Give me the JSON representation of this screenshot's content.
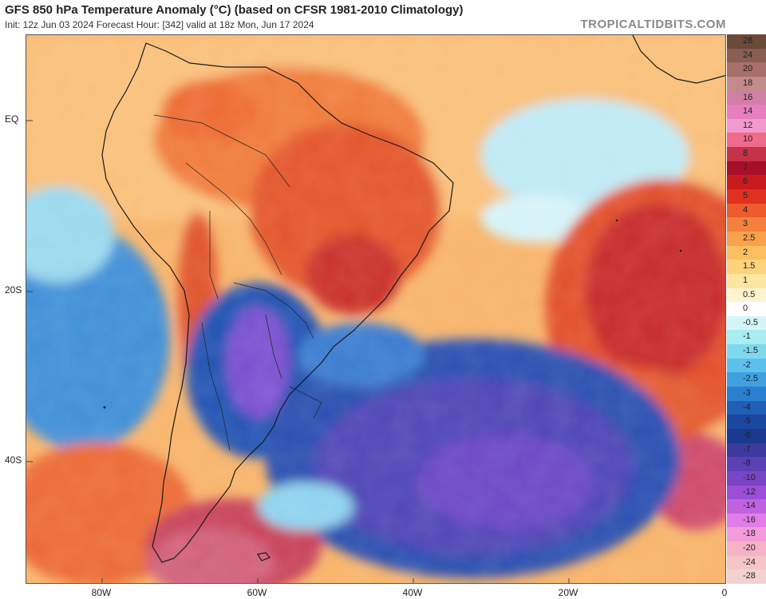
{
  "header": {
    "title": "GFS 850 hPa Temperature Anomaly (°C) (based on CFSR 1981-2010 Climatology)",
    "subtitle": "Init: 12z Jun 03 2024   Forecast Hour: [342]   valid at 18z Mon, Jun 17 2024",
    "brand": "TROPICALTIDBITS.COM"
  },
  "axes": {
    "lat_labels": [
      "EQ",
      "20S",
      "40S"
    ],
    "lon_labels": [
      "80W",
      "60W",
      "40W",
      "20W",
      "0"
    ]
  },
  "colorbar": {
    "levels": [
      "28",
      "24",
      "20",
      "18",
      "16",
      "14",
      "12",
      "10",
      "8",
      "7",
      "6",
      "5",
      "4",
      "3",
      "2.5",
      "2",
      "1.5",
      "1",
      "0.5",
      "0",
      "-0.5",
      "-1",
      "-1.5",
      "-2",
      "-2.5",
      "-3",
      "-4",
      "-5",
      "-6",
      "-7",
      "-8",
      "-10",
      "-12",
      "-14",
      "-16",
      "-18",
      "-20",
      "-24",
      "-28"
    ],
    "colors": [
      "#6b4a3a",
      "#8a5e52",
      "#a8706a",
      "#c28a8a",
      "#cf7fa3",
      "#e77fbf",
      "#f39ad1",
      "#f06b8a",
      "#c4324a",
      "#a8102a",
      "#c71b1e",
      "#e0301e",
      "#ee5b2c",
      "#f4813e",
      "#f8a24d",
      "#fbbf62",
      "#fdd37c",
      "#fde6a0",
      "#fef3cf",
      "#ffffff",
      "#d5f6f8",
      "#a8eef0",
      "#7ed9ee",
      "#5dc0ec",
      "#3fa1e0",
      "#2a7fd0",
      "#1f5fb6",
      "#1a47a0",
      "#1b3a8f",
      "#3c3a9e",
      "#5b3fb5",
      "#7a44c7",
      "#9a4fd6",
      "#c063e0",
      "#e07de8",
      "#f39bd8",
      "#f7b3c6",
      "#f6c6c6",
      "#f3d1d1"
    ]
  }
}
